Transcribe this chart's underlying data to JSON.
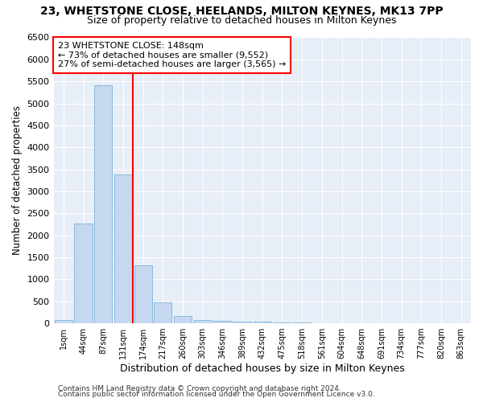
{
  "title1": "23, WHETSTONE CLOSE, HEELANDS, MILTON KEYNES, MK13 7PP",
  "title2": "Size of property relative to detached houses in Milton Keynes",
  "xlabel": "Distribution of detached houses by size in Milton Keynes",
  "ylabel": "Number of detached properties",
  "categories": [
    "1sqm",
    "44sqm",
    "87sqm",
    "131sqm",
    "174sqm",
    "217sqm",
    "260sqm",
    "303sqm",
    "346sqm",
    "389sqm",
    "432sqm",
    "475sqm",
    "518sqm",
    "561sqm",
    "604sqm",
    "648sqm",
    "691sqm",
    "734sqm",
    "777sqm",
    "820sqm",
    "863sqm"
  ],
  "values": [
    75,
    2270,
    5420,
    3380,
    1310,
    475,
    160,
    80,
    55,
    40,
    30,
    20,
    15,
    10,
    8,
    5,
    4,
    3,
    2,
    2,
    1
  ],
  "bar_color": "#c5d8f0",
  "bar_edge_color": "#6aaad4",
  "vline_x": 3.5,
  "vline_color": "red",
  "annotation_line1": "23 WHETSTONE CLOSE: 148sqm",
  "annotation_line2": "← 73% of detached houses are smaller (9,552)",
  "annotation_line3": "27% of semi-detached houses are larger (3,565) →",
  "annotation_box_color": "white",
  "annotation_box_edge": "red",
  "footer1": "Contains HM Land Registry data © Crown copyright and database right 2024.",
  "footer2": "Contains public sector information licensed under the Open Government Licence v3.0.",
  "bg_color": "#e8eef8",
  "ylim": [
    0,
    6500
  ],
  "yticks": [
    0,
    500,
    1000,
    1500,
    2000,
    2500,
    3000,
    3500,
    4000,
    4500,
    5000,
    5500,
    6000,
    6500
  ],
  "title1_fontsize": 10,
  "title2_fontsize": 9,
  "xlabel_fontsize": 9,
  "ylabel_fontsize": 8.5,
  "tick_fontsize": 8,
  "xtick_fontsize": 7,
  "footer_fontsize": 6.5,
  "annot_fontsize": 8
}
